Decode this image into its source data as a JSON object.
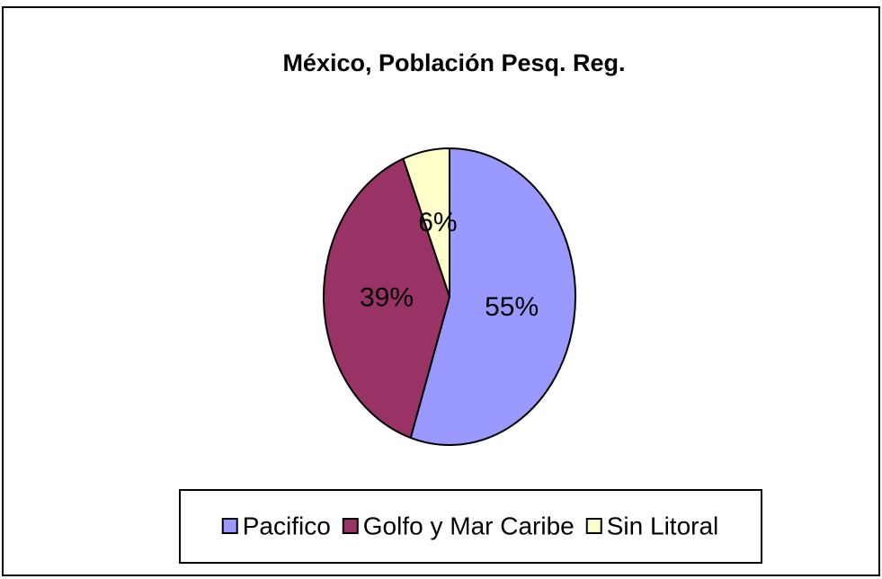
{
  "chart_data": {
    "type": "pie",
    "title": "México, Población Pesq. Reg.",
    "categories": [
      "Pacifico",
      "Golfo y Mar Caribe",
      "Sin Litoral"
    ],
    "values": [
      55,
      39,
      6
    ],
    "value_labels": [
      "55%",
      "39%",
      "6%"
    ],
    "colors": [
      "#9999ff",
      "#993366",
      "#ffffcc"
    ],
    "legend": "bottom"
  }
}
